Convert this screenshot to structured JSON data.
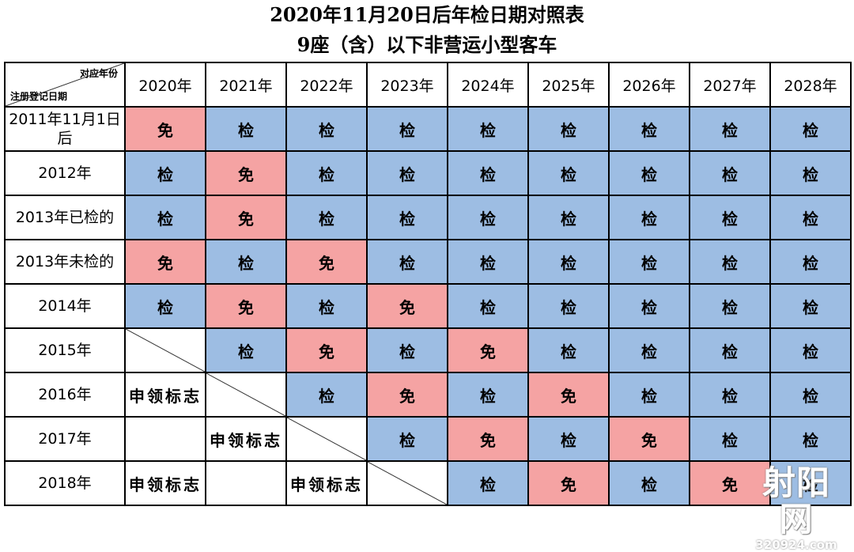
{
  "title": "2020年11月20日后年检日期对照表",
  "subtitle": "9座（含）以下非营运小型客车",
  "corner": {
    "top_right": "对应年份",
    "bottom_left": "注册登记日期"
  },
  "years": [
    "2020年",
    "2021年",
    "2022年",
    "2023年",
    "2024年",
    "2025年",
    "2026年",
    "2027年",
    "2028年"
  ],
  "colors": {
    "inspect": "#9dbde3",
    "exempt": "#f5a3a3"
  },
  "rows": [
    {
      "label": "2011年11月1日后",
      "cells": [
        "免",
        "检",
        "检",
        "检",
        "检",
        "检",
        "检",
        "检",
        "检"
      ]
    },
    {
      "label": "2012年",
      "cells": [
        "检",
        "免",
        "检",
        "检",
        "检",
        "检",
        "检",
        "检",
        "检"
      ]
    },
    {
      "label": "2013年已检的",
      "cells": [
        "检",
        "免",
        "检",
        "检",
        "检",
        "检",
        "检",
        "检",
        "检"
      ]
    },
    {
      "label": "2013年未检的",
      "cells": [
        "免",
        "检",
        "免",
        "检",
        "检",
        "检",
        "检",
        "检",
        "检"
      ]
    },
    {
      "label": "2014年",
      "cells": [
        "检",
        "免",
        "检",
        "免",
        "检",
        "检",
        "检",
        "检",
        "检"
      ]
    },
    {
      "label": "2015年",
      "cells": [
        "/",
        "检",
        "免",
        "检",
        "免",
        "检",
        "检",
        "检",
        "检"
      ]
    },
    {
      "label": "2016年",
      "cells": [
        "申领标志",
        "/",
        "检",
        "免",
        "检",
        "免",
        "检",
        "检",
        "检"
      ]
    },
    {
      "label": "2017年",
      "cells": [
        "",
        "申领标志",
        "/",
        "检",
        "免",
        "检",
        "免",
        "检",
        "检"
      ]
    },
    {
      "label": "2018年",
      "cells": [
        "申领标志",
        "",
        "申领标志",
        "/",
        "检",
        "免",
        "检",
        "免",
        "检"
      ]
    }
  ],
  "watermark": {
    "logo": "射阳网",
    "url": "320924.com"
  }
}
